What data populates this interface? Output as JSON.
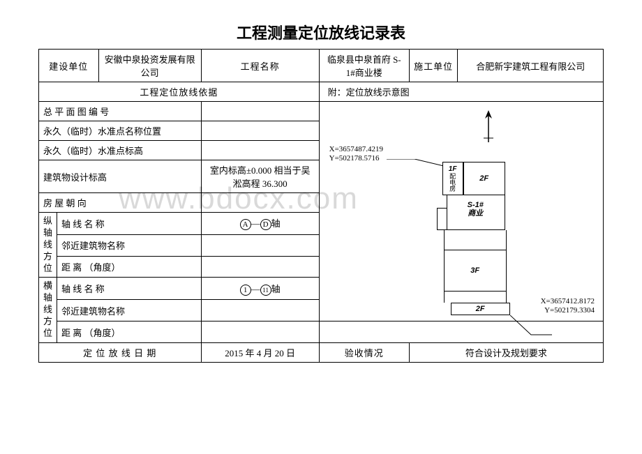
{
  "title": "工程测量定位放线记录表",
  "header": {
    "col1_label": "建设单位",
    "col1_value": "安徽中泉投资发展有限公司",
    "col2_label": "工程名称",
    "col2_value": "临泉县中泉首府 S-1#商业楼",
    "col3_label": "施工单位",
    "col3_value": "合肥新宇建筑工程有限公司"
  },
  "basis_header": "工程定位放线依据",
  "diagram_header": "附：定位放线示意图",
  "rows": {
    "r1": "总 平 面 图 编 号",
    "r2": "永久（临时）水准点名称位置",
    "r3": "永久（临时）水准点标高",
    "r4_label": "建筑物设计标高",
    "r4_value": "室内标高±0.000 相当于吴淞高程 36.300",
    "r5": "房 屋 朝 向"
  },
  "vertical_axis": {
    "group": "纵轴线方位",
    "name_label": "轴 线 名 称",
    "name_value_a": "A",
    "name_value_d": "D",
    "name_value_sep": "—",
    "name_value_suffix": "轴",
    "adj_label": "邻近建筑物名称",
    "dist_label": "距 离 （角度）"
  },
  "horizontal_axis": {
    "group": "横轴线方位",
    "name_label": "轴 线 名 称",
    "name_value_1": "1",
    "name_value_11": "11",
    "name_value_sep": "—",
    "name_value_suffix": "轴",
    "adj_label": "邻近建筑物名称",
    "dist_label": "距 离 （角度）"
  },
  "footer": {
    "date_label": "定 位 放 线 日 期",
    "date_value": "2015 年 4 月 20 日",
    "accept_label": "验收情况",
    "accept_value": "符合设计及规划要求"
  },
  "diagram": {
    "coord1_x": "X=3657487.4219",
    "coord1_y": "Y=502178.5716",
    "coord2_x": "X=3657412.8172",
    "coord2_y": "Y=502179.3304",
    "b1f": "1F",
    "b1f_sub": "配电房",
    "b2f": "2F",
    "bs1_a": "S-1#",
    "bs1_b": "商业",
    "b3f": "3F",
    "b2fb": "2F"
  },
  "watermark": "www.bdocx.com"
}
